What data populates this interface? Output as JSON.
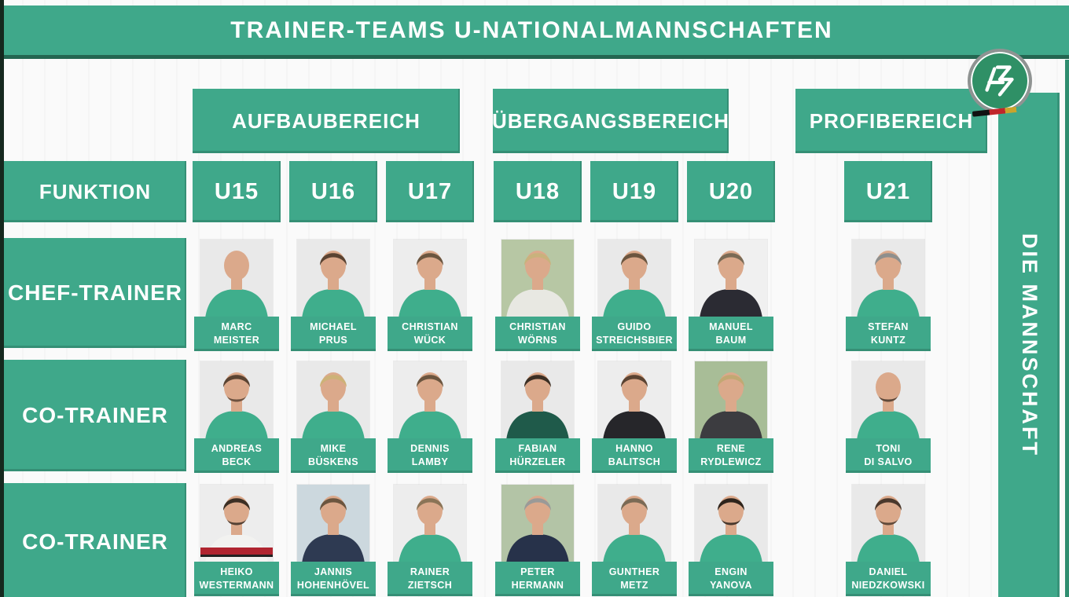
{
  "page": {
    "title": "TRAINER-TEAMS U-NATIONALMANNSCHAFTEN",
    "side_banner": "DIE MANNSCHAFT",
    "logo": "DFB crest"
  },
  "colors": {
    "green": "#3fa88a",
    "green_logo": "#2f9066",
    "edge_dark": "#15281e",
    "text": "#ffffff",
    "photo_bg_default": "#e9e9e9"
  },
  "table": {
    "function_header": "FUNKTION",
    "groups": [
      {
        "label": "AUFBAUBEREICH",
        "columns": [
          "U15",
          "U16",
          "U17"
        ]
      },
      {
        "label": "ÜBERGANGSBEREICH",
        "columns": [
          "U18",
          "U19",
          "U20"
        ]
      },
      {
        "label": "PROFIBEREICH",
        "columns": [
          "U21"
        ]
      }
    ],
    "columns": [
      "U15",
      "U16",
      "U17",
      "U18",
      "U19",
      "U20",
      "U21"
    ],
    "rows": [
      {
        "function_lines": [
          "CHEF-",
          "TRAINER"
        ],
        "people": [
          {
            "column": "U15",
            "name_lines": [
              "MARC",
              "MEISTER"
            ],
            "photo": {
              "bg": "#e9e9e9",
              "shirt": "#3fae8c",
              "hair": "none",
              "beard": false
            }
          },
          {
            "column": "U16",
            "name_lines": [
              "MICHAEL",
              "PRUS"
            ],
            "photo": {
              "bg": "#e9e9e9",
              "shirt": "#3fae8c",
              "hair": "#5a4332",
              "beard": false
            }
          },
          {
            "column": "U17",
            "name_lines": [
              "CHRISTIAN",
              "WÜCK"
            ],
            "photo": {
              "bg": "#ededed",
              "shirt": "#3fae8c",
              "hair": "#6b553f",
              "beard": false
            }
          },
          {
            "column": "U18",
            "name_lines": [
              "CHRISTIAN",
              "WÖRNS"
            ],
            "photo": {
              "bg": "#b7c7a4",
              "shirt": "#e8e8e2",
              "hair": "#c9b27c",
              "beard": false
            }
          },
          {
            "column": "U19",
            "name_lines": [
              "GUIDO",
              "STREICHSBIER"
            ],
            "photo": {
              "bg": "#e9e9e9",
              "shirt": "#3fae8c",
              "hair": "#6b553f",
              "beard": false
            }
          },
          {
            "column": "U20",
            "name_lines": [
              "MANUEL",
              "BAUM"
            ],
            "photo": {
              "bg": "#f0f0f0",
              "shirt": "#2b2b33",
              "hair": "#7a6a55",
              "beard": false
            }
          },
          {
            "column": "U21",
            "name_lines": [
              "STEFAN",
              "KUNTZ"
            ],
            "photo": {
              "bg": "#e9e9e9",
              "shirt": "#3fae8c",
              "hair": "#8f8f8d",
              "beard": false
            }
          }
        ]
      },
      {
        "function_lines": [
          "CO-",
          "TRAINER"
        ],
        "people": [
          {
            "column": "U15",
            "name_lines": [
              "ANDREAS",
              "BECK"
            ],
            "photo": {
              "bg": "#e9e9e9",
              "shirt": "#3fae8c",
              "hair": "#5a4332",
              "beard": true
            }
          },
          {
            "column": "U16",
            "name_lines": [
              "MIKE",
              "BÜSKENS"
            ],
            "photo": {
              "bg": "#e9e9e9",
              "shirt": "#3fae8c",
              "hair": "#cdb277",
              "beard": false
            }
          },
          {
            "column": "U17",
            "name_lines": [
              "DENNIS",
              "LAMBY"
            ],
            "photo": {
              "bg": "#ededed",
              "shirt": "#3fae8c",
              "hair": "#6b553f",
              "beard": false
            }
          },
          {
            "column": "U18",
            "name_lines": [
              "FABIAN",
              "HÜRZELER"
            ],
            "photo": {
              "bg": "#e9e9e9",
              "shirt": "#1f5a4a",
              "hair": "#3c2f24",
              "beard": false
            }
          },
          {
            "column": "U19",
            "name_lines": [
              "HANNO",
              "BALITSCH"
            ],
            "photo": {
              "bg": "#ededed",
              "shirt": "#26262a",
              "hair": "#5a4332",
              "beard": false
            }
          },
          {
            "column": "U20",
            "name_lines": [
              "RENE",
              "RYDLEWICZ"
            ],
            "photo": {
              "bg": "#a8bd97",
              "shirt": "#3c3c40",
              "hair": "#c2a873",
              "beard": false
            }
          },
          {
            "column": "U21",
            "name_lines": [
              "TONI",
              "DI SALVO"
            ],
            "photo": {
              "bg": "#e9e9e9",
              "shirt": "#3fae8c",
              "hair": "none",
              "beard": true
            }
          }
        ]
      },
      {
        "function_lines": [
          "CO-",
          "TRAINER"
        ],
        "people": [
          {
            "column": "U15",
            "name_lines": [
              "HEIKO",
              "WESTERMANN"
            ],
            "photo": {
              "bg": "#ededed",
              "shirt": "#f2f2f0",
              "hair": "#3c2f24",
              "beard": true,
              "accent": "#b02530"
            }
          },
          {
            "column": "U16",
            "name_lines": [
              "JANNIS",
              "HOHENHÖVEL"
            ],
            "photo": {
              "bg": "#ccd8de",
              "shirt": "#2e3a52",
              "hair": "#6b553f",
              "beard": false
            }
          },
          {
            "column": "U17",
            "name_lines": [
              "RAINER",
              "ZIETSCH"
            ],
            "photo": {
              "bg": "#ededed",
              "shirt": "#3fae8c",
              "hair": "#8a7457",
              "beard": false
            }
          },
          {
            "column": "U18",
            "name_lines": [
              "PETER",
              "HERMANN"
            ],
            "photo": {
              "bg": "#b3c4a6",
              "shirt": "#27324a",
              "hair": "#9a9a98",
              "beard": false
            }
          },
          {
            "column": "U19",
            "name_lines": [
              "GUNTHER",
              "METZ"
            ],
            "photo": {
              "bg": "#e9e9e9",
              "shirt": "#3fae8c",
              "hair": "#7a6a55",
              "beard": false
            }
          },
          {
            "column": "U20",
            "name_lines": [
              "ENGIN",
              "YANOVA"
            ],
            "photo": {
              "bg": "#e9e9e9",
              "shirt": "#3fae8c",
              "hair": "#2e241c",
              "beard": true
            }
          },
          {
            "column": "U21",
            "name_lines": [
              "DANIEL",
              "NIEDZKOWSKI"
            ],
            "photo": {
              "bg": "#e9e9e9",
              "shirt": "#3fae8c",
              "hair": "#4a382c",
              "beard": true
            }
          }
        ]
      }
    ]
  }
}
